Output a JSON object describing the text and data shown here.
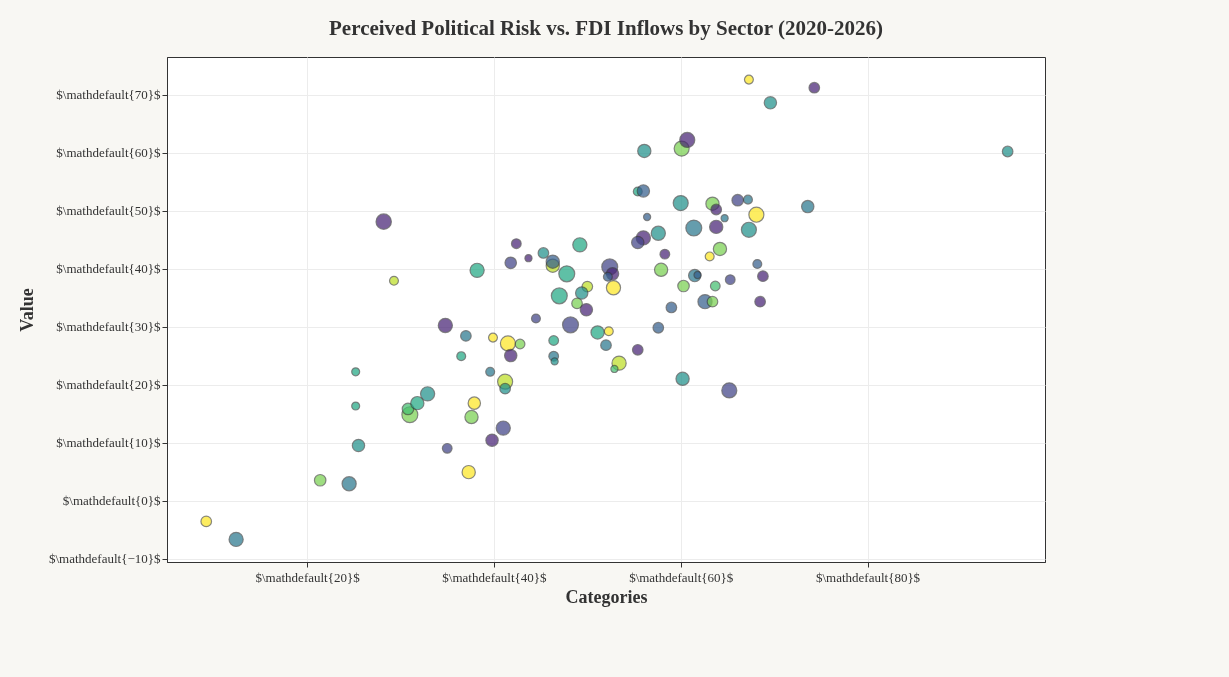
{
  "chart_data": {
    "type": "bubble",
    "title": "Perceived Political Risk vs. FDI Inflows by Sector (2020-2026)",
    "xlabel": "Categories",
    "ylabel": "Value",
    "x": [
      28.2,
      29.3,
      38.2,
      42.4,
      41.8,
      43.7,
      45.3,
      46.3,
      46.3,
      49.2,
      47.8,
      50.0,
      49.4,
      47.0,
      48.9,
      49.9,
      9.2,
      12.4,
      21.4,
      24.5,
      25.5,
      25.2,
      25.2,
      31.0,
      30.8,
      31.8,
      32.9,
      35.0,
      34.8,
      37.0,
      36.5,
      37.3,
      37.6,
      37.9,
      39.6,
      39.9,
      41.5,
      42.8,
      41.8,
      39.8,
      41.0,
      41.2,
      41.2,
      44.5,
      46.4,
      46.4,
      46.5,
      48.2,
      51.1,
      52.0,
      52.3,
      53.4,
      52.9,
      55.4,
      57.6,
      60.2,
      65.2,
      59.0,
      67.3,
      74.3,
      69.6,
      95.0,
      56.1,
      60.1,
      60.7,
      73.6,
      55.4,
      56.0,
      60.0,
      63.4,
      63.8,
      66.1,
      67.2,
      56.4,
      64.7,
      68.1,
      57.6,
      61.4,
      63.8,
      67.3,
      56.0,
      55.4,
      58.3,
      64.2,
      63.1,
      52.4,
      52.7,
      52.2,
      52.8,
      57.9,
      61.5,
      61.8,
      65.3,
      68.2,
      68.8,
      60.3,
      63.7,
      62.6,
      63.4,
      68.5
    ],
    "values": [
      48.1,
      37.9,
      39.7,
      44.3,
      41.0,
      41.8,
      42.7,
      40.5,
      41.2,
      44.1,
      39.1,
      36.9,
      35.8,
      35.3,
      34.0,
      32.9,
      -3.6,
      -6.7,
      3.5,
      2.9,
      9.5,
      16.3,
      22.2,
      14.8,
      15.8,
      16.8,
      18.4,
      9.0,
      30.2,
      28.4,
      24.9,
      4.9,
      14.4,
      16.8,
      22.2,
      28.1,
      27.1,
      27.0,
      25.0,
      10.4,
      12.5,
      20.5,
      19.3,
      31.4,
      27.6,
      24.9,
      24.0,
      30.3,
      29.0,
      26.8,
      29.2,
      23.7,
      22.7,
      26.0,
      29.8,
      21.0,
      19.0,
      33.3,
      72.6,
      71.2,
      68.6,
      60.2,
      60.3,
      60.7,
      62.2,
      50.7,
      53.3,
      53.4,
      51.3,
      51.2,
      50.2,
      51.8,
      51.9,
      48.9,
      48.7,
      49.3,
      46.1,
      47.0,
      47.2,
      46.7,
      45.3,
      44.5,
      42.5,
      43.4,
      42.1,
      40.3,
      39.1,
      38.6,
      36.7,
      39.8,
      38.8,
      38.9,
      38.1,
      40.8,
      38.7,
      37.0,
      37.0,
      34.3,
      34.3,
      34.3
    ],
    "sizes": [
      0.93,
      0.31,
      0.79,
      0.37,
      0.52,
      0.2,
      0.44,
      0.69,
      0.69,
      0.79,
      1,
      0.44,
      0.6,
      1,
      0.44,
      0.6,
      0.44,
      0.79,
      0.52,
      0.79,
      0.6,
      0.25,
      0.25,
      1,
      0.52,
      0.69,
      0.79,
      0.37,
      0.79,
      0.44,
      0.31,
      0.69,
      0.69,
      0.6,
      0.31,
      0.31,
      0.89,
      0.37,
      0.6,
      0.6,
      0.79,
      0.89,
      0.44,
      0.31,
      0.37,
      0.37,
      0.2,
      1,
      0.69,
      0.44,
      0.31,
      0.79,
      0.2,
      0.44,
      0.44,
      0.69,
      0.89,
      0.44,
      0.31,
      0.44,
      0.6,
      0.44,
      0.69,
      0.89,
      0.89,
      0.6,
      0.31,
      0.6,
      0.89,
      0.69,
      0.44,
      0.52,
      0.31,
      0.2,
      0.2,
      0.89,
      0.79,
      1,
      0.69,
      0.89,
      0.79,
      0.6,
      0.37,
      0.69,
      0.31,
      1,
      0.6,
      0.31,
      0.79,
      0.69,
      0.6,
      0.2,
      0.37,
      0.31,
      0.44,
      0.52,
      0.37,
      0.79,
      0.44,
      0.44
    ],
    "colors": [
      "#482475",
      "#bddf26",
      "#22a884",
      "#482475",
      "#414487",
      "#482475",
      "#21918c",
      "#bddf26",
      "#355f8d",
      "#22a884",
      "#22a884",
      "#bddf26",
      "#21918c",
      "#22a884",
      "#7ad151",
      "#482475",
      "#fde725",
      "#2a788e",
      "#7ad151",
      "#2a788e",
      "#21918c",
      "#22a884",
      "#22a884",
      "#7ad151",
      "#44bf70",
      "#22a884",
      "#21918c",
      "#414487",
      "#482475",
      "#2a788e",
      "#22a884",
      "#fde725",
      "#7ad151",
      "#fde725",
      "#2a788e",
      "#fde725",
      "#fde725",
      "#7ad151",
      "#482475",
      "#482475",
      "#414487",
      "#bddf26",
      "#21918c",
      "#414487",
      "#22a884",
      "#2a788e",
      "#21918c",
      "#414487",
      "#22a884",
      "#2a788e",
      "#fde725",
      "#bddf26",
      "#44bf70",
      "#482475",
      "#355f8d",
      "#21918c",
      "#414487",
      "#355f8d",
      "#fde725",
      "#482475",
      "#21918c",
      "#21918c",
      "#21918c",
      "#7ad151",
      "#482475",
      "#2a788e",
      "#22a884",
      "#355f8d",
      "#21918c",
      "#7ad151",
      "#482475",
      "#414487",
      "#2a788e",
      "#355f8d",
      "#2a788e",
      "#fde725",
      "#21918c",
      "#2a788e",
      "#482475",
      "#21918c",
      "#482475",
      "#414487",
      "#482475",
      "#7ad151",
      "#fde725",
      "#414487",
      "#482475",
      "#355f8d",
      "#fde725",
      "#7ad151",
      "#2a788e",
      "#355f8d",
      "#414487",
      "#355f8d",
      "#482475",
      "#7ad151",
      "#44bf70",
      "#355f8d",
      "#7ad151",
      "#482475"
    ],
    "xlim": [
      5,
      99
    ],
    "ylim": [
      -10.6,
      76.5
    ],
    "xticks": [
      {
        "value": 20,
        "label": "$\\mathdefault{20}$"
      },
      {
        "value": 40,
        "label": "$\\mathdefault{40}$"
      },
      {
        "value": 60,
        "label": "$\\mathdefault{60}$"
      },
      {
        "value": 80,
        "label": "$\\mathdefault{80}$"
      }
    ],
    "yticks": [
      {
        "value": -10,
        "label": "$\\mathdefault{−10}$"
      },
      {
        "value": 0,
        "label": "$\\mathdefault{0}$"
      },
      {
        "value": 10,
        "label": "$\\mathdefault{10}$"
      },
      {
        "value": 20,
        "label": "$\\mathdefault{20}$"
      },
      {
        "value": 30,
        "label": "$\\mathdefault{30}$"
      },
      {
        "value": 40,
        "label": "$\\mathdefault{40}$"
      },
      {
        "value": 50,
        "label": "$\\mathdefault{50}$"
      },
      {
        "value": 60,
        "label": "$\\mathdefault{60}$"
      },
      {
        "value": 70,
        "label": "$\\mathdefault{70}$"
      }
    ],
    "grid": true
  }
}
